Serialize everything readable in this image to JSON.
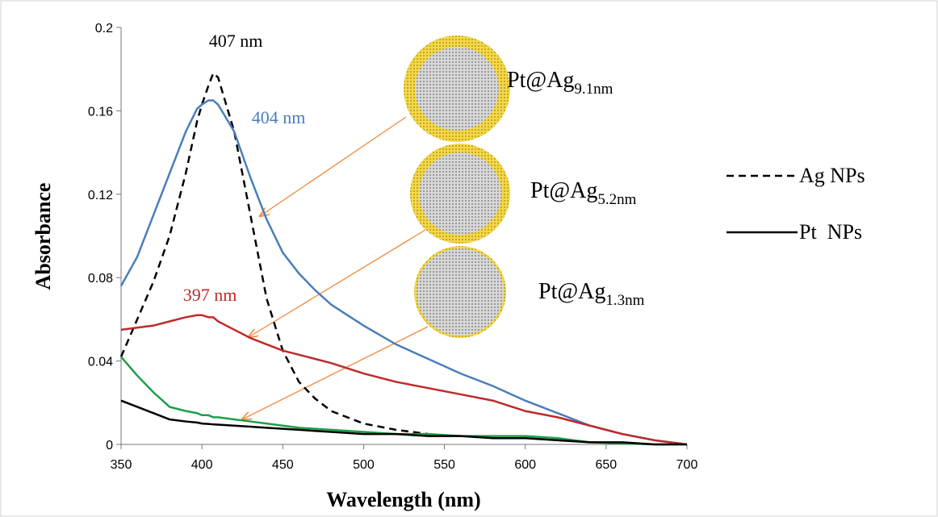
{
  "chart_data": {
    "type": "line",
    "xlabel": "Wavelength (nm)",
    "ylabel": "Absorbance",
    "x": [
      350,
      360,
      370,
      380,
      390,
      397,
      400,
      404,
      407,
      410,
      420,
      430,
      440,
      450,
      460,
      470,
      480,
      500,
      520,
      540,
      560,
      580,
      600,
      620,
      640,
      660,
      680,
      700
    ],
    "series": [
      {
        "name": "Ag NPs",
        "color": "#000000",
        "dashed": true,
        "values": [
          0.042,
          0.06,
          0.078,
          0.1,
          0.13,
          0.155,
          0.163,
          0.172,
          0.178,
          0.176,
          0.15,
          0.11,
          0.07,
          0.045,
          0.03,
          0.022,
          0.016,
          0.01,
          0.007,
          0.005,
          null,
          null,
          null,
          null,
          null,
          null,
          null,
          null
        ]
      },
      {
        "color": "#4a7ebb",
        "values": [
          0.076,
          0.09,
          0.11,
          0.13,
          0.15,
          0.161,
          0.163,
          0.165,
          0.165,
          0.163,
          0.15,
          0.128,
          0.108,
          0.092,
          0.082,
          0.074,
          0.067,
          0.057,
          0.048,
          0.041,
          0.034,
          0.028,
          0.021,
          0.015,
          0.009,
          0.005,
          0.002,
          0
        ]
      },
      {
        "color": "#be2a2a",
        "values": [
          0.055,
          0.056,
          0.057,
          0.059,
          0.061,
          0.062,
          0.062,
          0.061,
          0.061,
          0.059,
          0.055,
          0.051,
          0.048,
          0.045,
          0.043,
          0.041,
          0.039,
          0.034,
          0.03,
          0.027,
          0.024,
          0.021,
          0.016,
          0.013,
          0.009,
          0.005,
          0.002,
          0
        ]
      },
      {
        "color": "#1e9e4a",
        "values": [
          0.042,
          0.033,
          0.025,
          0.018,
          0.016,
          0.015,
          0.014,
          0.014,
          0.013,
          0.013,
          0.012,
          0.011,
          0.01,
          0.009,
          0.008,
          0.0075,
          0.007,
          0.006,
          0.005,
          0.005,
          0.004,
          0.004,
          0.004,
          0.003,
          0.001,
          0.0005,
          0,
          0
        ]
      },
      {
        "name": "Pt  NPs",
        "color": "#000000",
        "values": [
          0.021,
          0.018,
          0.015,
          0.012,
          0.011,
          0.0105,
          0.01,
          0.0098,
          0.0096,
          0.0095,
          0.009,
          0.0085,
          0.008,
          0.0075,
          0.007,
          0.0065,
          0.006,
          0.005,
          0.005,
          0.004,
          0.004,
          0.003,
          0.003,
          0.002,
          0.001,
          0.001,
          0,
          0
        ]
      }
    ],
    "annotations": [
      {
        "text": "407 nm",
        "color": "#000000"
      },
      {
        "text": "404 nm",
        "color": "#4a7ebb"
      },
      {
        "text": "397 nm",
        "color": "#be2a2a"
      }
    ],
    "shells": [
      {
        "base": "Pt@Ag",
        "sub": "9.1nm"
      },
      {
        "base": "Pt@Ag",
        "sub": "5.2nm"
      },
      {
        "base": "Pt@Ag",
        "sub": "1.3nm"
      }
    ],
    "xlim": [
      350,
      700
    ],
    "xticks": [
      350,
      400,
      450,
      500,
      550,
      600,
      650,
      700
    ],
    "ylim": [
      0,
      0.2
    ],
    "yticks": [
      0,
      0.04,
      0.08,
      0.12,
      0.16,
      0.2
    ]
  }
}
